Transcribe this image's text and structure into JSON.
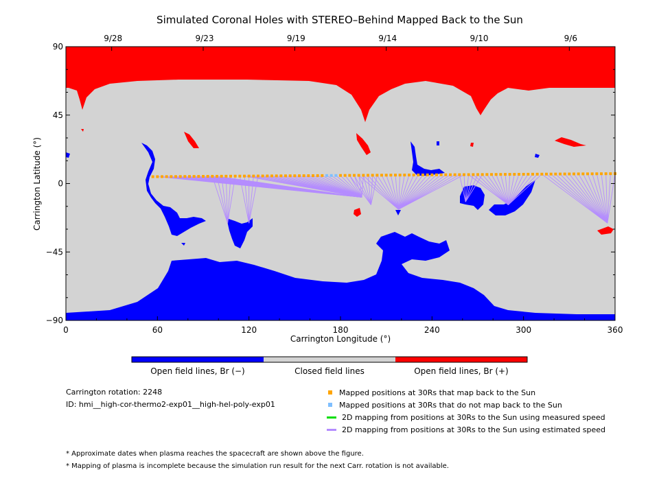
{
  "chart_data": {
    "type": "map",
    "title": "Simulated Coronal Holes with STEREO–Behind Mapped Back to the Sun",
    "xlabel": "Carrington Longitude (°)",
    "ylabel": "Carrington Latitude (°)",
    "xlim": [
      0,
      360
    ],
    "ylim": [
      -90,
      90
    ],
    "x_ticks": [
      "0",
      "60",
      "120",
      "180",
      "240",
      "300",
      "360"
    ],
    "y_ticks": [
      "90",
      "45",
      "0",
      "−45",
      "−90"
    ],
    "top_date_ticks": [
      {
        "label": "9/28",
        "lon": 30
      },
      {
        "label": "9/23",
        "lon": 90
      },
      {
        "label": "9/19",
        "lon": 150
      },
      {
        "label": "9/14",
        "lon": 210
      },
      {
        "label": "9/10",
        "lon": 270
      },
      {
        "label": "9/6",
        "lon": 330
      }
    ],
    "colorbar": [
      {
        "label": "Open field lines, Br (−)",
        "color": "#0000ff"
      },
      {
        "label": "Closed field lines",
        "color": "#d3d3d3"
      },
      {
        "label": "Open field lines, Br (+)",
        "color": "#ff0000"
      }
    ],
    "mapped_track": {
      "lon_start": 57,
      "lon_end": 360,
      "lat_start": 4.5,
      "lat_end": 6.5,
      "unmapped_lon_range": [
        171,
        178
      ]
    },
    "footpoint_groups": [
      {
        "target": [
          194,
          -9
        ],
        "src_lon": [
          58,
          100
        ]
      },
      {
        "target": [
          106,
          -26
        ],
        "src_lon": [
          95,
          112
        ]
      },
      {
        "target": [
          120,
          -26
        ],
        "src_lon": [
          112,
          126
        ]
      },
      {
        "target": [
          194,
          -9
        ],
        "src_lon": [
          115,
          195
        ]
      },
      {
        "target": [
          200,
          -14
        ],
        "src_lon": [
          185,
          205
        ]
      },
      {
        "target": [
          218,
          -17
        ],
        "src_lon": [
          190,
          262
        ]
      },
      {
        "target": [
          262,
          -12
        ],
        "src_lon": [
          258,
          275
        ]
      },
      {
        "target": [
          290,
          -14
        ],
        "src_lon": [
          262,
          312
        ]
      },
      {
        "target": [
          355,
          -26
        ],
        "src_lon": [
          310,
          360
        ]
      }
    ]
  },
  "colors": {
    "positive": "#ff0000",
    "negative": "#0000ff",
    "closed": "#d3d3d3",
    "mapped": "#ffa500",
    "unmapped": "#7fbfff",
    "measured": "#00dd00",
    "estimated": "#b48cff"
  },
  "info": {
    "rotation": "Carrington rotation: 2248",
    "id": "ID: hmi__high-cor-thermo2-exp01__high-hel-poly-exp01"
  },
  "legend": [
    {
      "label": "Mapped positions at 30Rs that map back to the Sun",
      "kind": "square",
      "color": "#ffa500"
    },
    {
      "label": "Mapped positions at 30Rs that do not map back to the Sun",
      "kind": "square",
      "color": "#7fbfff"
    },
    {
      "label": "2D mapping from positions at 30Rs to the Sun using measured speed",
      "kind": "line",
      "color": "#00dd00"
    },
    {
      "label": "2D mapping from positions at 30Rs to the Sun using estimated speed",
      "kind": "line",
      "color": "#b48cff"
    }
  ],
  "notes": [
    "* Approximate dates when plasma reaches the spacecraft are shown above the figure.",
    "* Mapping of plasma is incomplete because the simulation run result for the next Carr. rotation is not available."
  ]
}
